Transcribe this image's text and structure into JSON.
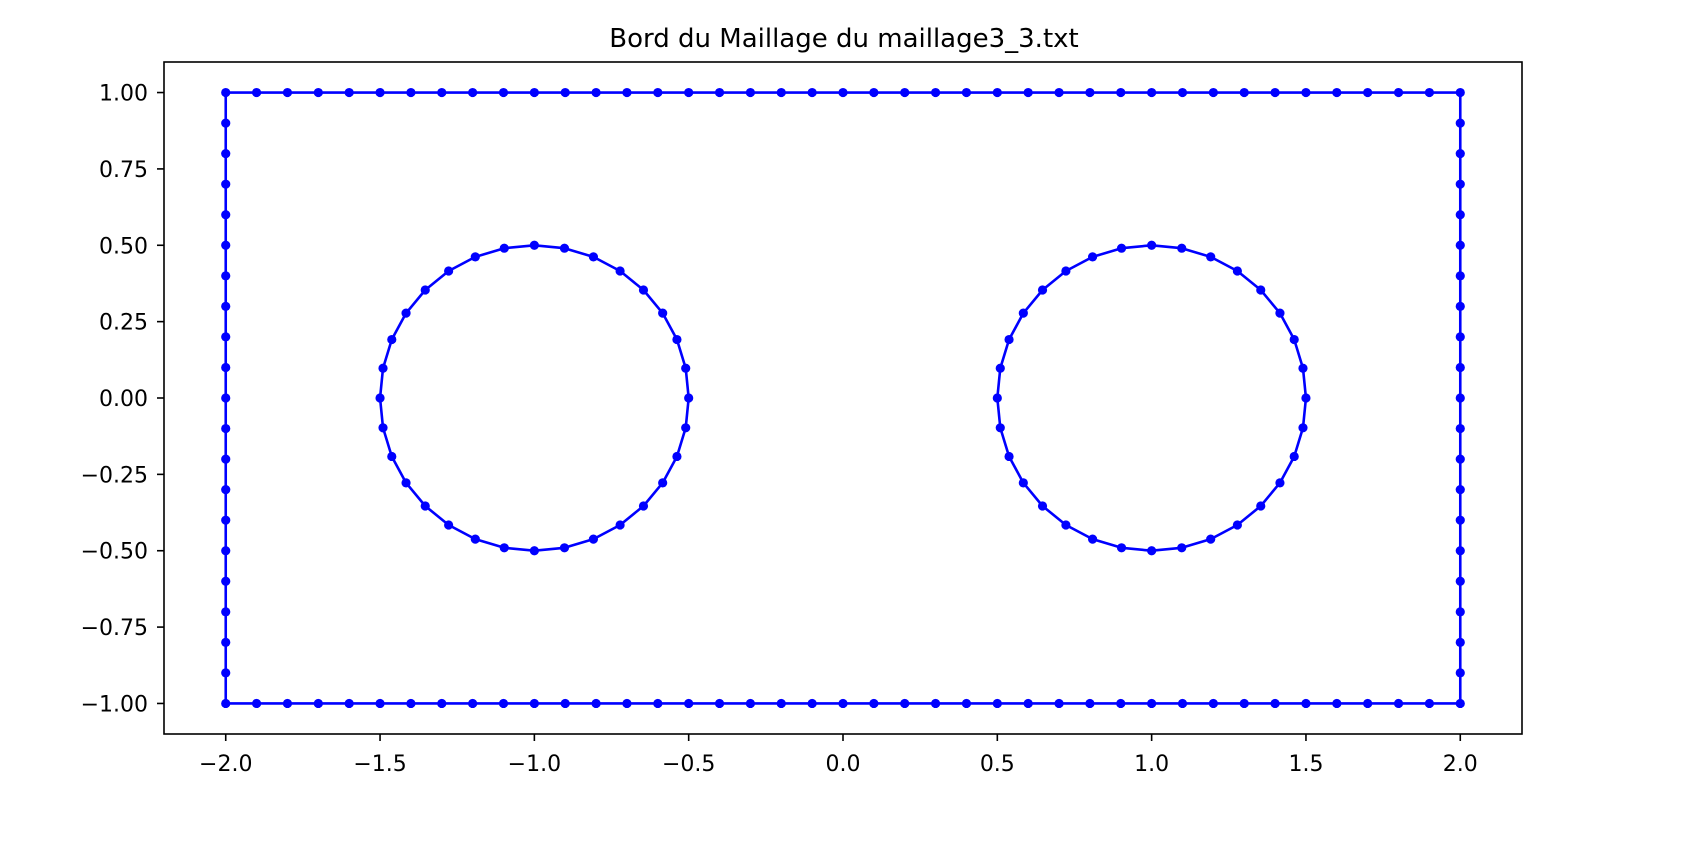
{
  "chart_data": {
    "type": "line",
    "title": "Bord du Maillage du maillage3_3.txt",
    "xlabel": "",
    "ylabel": "",
    "xlim": [
      -2.2,
      2.2
    ],
    "ylim": [
      -1.1,
      1.1
    ],
    "x_ticks": [
      -2.0,
      -1.5,
      -1.0,
      -0.5,
      0.0,
      0.5,
      1.0,
      1.5,
      2.0
    ],
    "x_tick_labels": [
      "−2.0",
      "−1.5",
      "−1.0",
      "−0.5",
      "0.0",
      "0.5",
      "1.0",
      "1.5",
      "2.0"
    ],
    "y_ticks": [
      1.0,
      0.75,
      0.5,
      0.25,
      0.0,
      -0.25,
      -0.5,
      -0.75,
      -1.0
    ],
    "y_tick_labels": [
      "1.00",
      "0.75",
      "0.50",
      "0.25",
      "0.00",
      "−0.25",
      "−0.50",
      "−0.75",
      "−1.00"
    ],
    "grid": false,
    "color": "#0000ff",
    "marker": "circle",
    "series": [
      {
        "shape": "rectangle",
        "x_min": -2.0,
        "x_max": 2.0,
        "y_min": -1.0,
        "y_max": 1.0,
        "x_step": 0.1,
        "y_step": 0.1
      },
      {
        "shape": "circle",
        "center": [
          -1.0,
          0.0
        ],
        "radius": 0.5,
        "points": 32
      },
      {
        "shape": "circle",
        "center": [
          1.0,
          0.0
        ],
        "radius": 0.5,
        "points": 32
      }
    ]
  }
}
